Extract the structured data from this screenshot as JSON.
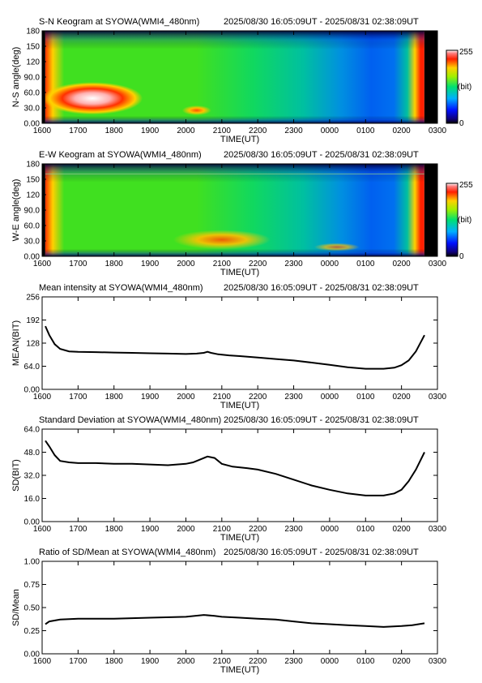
{
  "time_axis": {
    "xlabel": "TIME(UT)",
    "ticks": [
      "1600",
      "1700",
      "1800",
      "1900",
      "2000",
      "2100",
      "2200",
      "2300",
      "0000",
      "0100",
      "0200",
      "0300"
    ],
    "range_hours": [
      16,
      27
    ]
  },
  "colorbar": {
    "max_label": "255",
    "unit_label": "(bit)",
    "min_label": "0"
  },
  "chart_data": [
    {
      "type": "heatmap",
      "title": "S-N Keogram at SYOWA(WMI4_480nm)",
      "time_range": "2025/08/30 16:05:09UT - 2025/08/31 02:38:09UT",
      "xlabel": "TIME(UT)",
      "ylabel": "N-S angle(deg)",
      "ylim": [
        0,
        180
      ],
      "ytick_labels": [
        "0.00",
        "30.0",
        "60.0",
        "90.0",
        "120",
        "150",
        "180"
      ],
      "colorbar": [
        0,
        255
      ],
      "data_start_hours": 16.086,
      "data_end_hours": 26.636
    },
    {
      "type": "heatmap",
      "title": "E-W Keogram at SYOWA(WMI4_480nm)",
      "time_range": "2025/08/30 16:05:09UT - 2025/08/31 02:38:09UT",
      "xlabel": "TIME(UT)",
      "ylabel": "W-E angle(deg)",
      "ylim": [
        0,
        180
      ],
      "ytick_labels": [
        "0.00",
        "30.0",
        "60.0",
        "90.0",
        "120",
        "150",
        "180"
      ],
      "colorbar": [
        0,
        255
      ],
      "data_start_hours": 16.086,
      "data_end_hours": 26.636
    },
    {
      "type": "line",
      "title": "Mean intensity at SYOWA(WMI4_480nm)",
      "time_range": "2025/08/30 16:05:09UT - 2025/08/31 02:38:09UT",
      "xlabel": "TIME(UT)",
      "ylabel": "MEAN(BIT)",
      "ylim": [
        0,
        256
      ],
      "ytick_labels": [
        "0.00",
        "64.0",
        "128",
        "192",
        "256"
      ],
      "series": [
        {
          "values": [
            [
              16.09,
              175
            ],
            [
              16.2,
              150
            ],
            [
              16.35,
              125
            ],
            [
              16.5,
              112
            ],
            [
              16.75,
              105
            ],
            [
              17.0,
              104
            ],
            [
              17.5,
              103
            ],
            [
              18.0,
              102
            ],
            [
              18.5,
              101
            ],
            [
              19.0,
              100
            ],
            [
              19.5,
              99
            ],
            [
              20.0,
              98
            ],
            [
              20.3,
              99
            ],
            [
              20.5,
              101
            ],
            [
              20.6,
              104
            ],
            [
              20.7,
              101
            ],
            [
              20.9,
              97
            ],
            [
              21.2,
              94
            ],
            [
              21.5,
              92
            ],
            [
              22.0,
              88
            ],
            [
              22.5,
              84
            ],
            [
              23.0,
              80
            ],
            [
              23.5,
              74
            ],
            [
              24.0,
              68
            ],
            [
              24.5,
              61
            ],
            [
              25.0,
              57
            ],
            [
              25.5,
              57
            ],
            [
              25.8,
              60
            ],
            [
              26.0,
              67
            ],
            [
              26.2,
              80
            ],
            [
              26.4,
              105
            ],
            [
              26.64,
              150
            ]
          ]
        }
      ]
    },
    {
      "type": "line",
      "title": "Standard Deviation at SYOWA(WMI4_480nm)",
      "time_range": "2025/08/30 16:05:09UT - 2025/08/31 02:38:09UT",
      "xlabel": "TIME(UT)",
      "ylabel": "SD(BIT)",
      "ylim": [
        0,
        64
      ],
      "ytick_labels": [
        "0.00",
        "16.0",
        "32.0",
        "48.0",
        "64.0"
      ],
      "series": [
        {
          "values": [
            [
              16.09,
              56
            ],
            [
              16.2,
              52
            ],
            [
              16.35,
              46
            ],
            [
              16.5,
              42
            ],
            [
              16.75,
              41
            ],
            [
              17.0,
              40.5
            ],
            [
              17.5,
              40.5
            ],
            [
              18.0,
              40
            ],
            [
              18.5,
              40
            ],
            [
              19.0,
              39.5
            ],
            [
              19.5,
              39
            ],
            [
              20.0,
              40
            ],
            [
              20.2,
              41
            ],
            [
              20.4,
              43
            ],
            [
              20.6,
              45
            ],
            [
              20.8,
              44
            ],
            [
              21.0,
              40
            ],
            [
              21.3,
              38
            ],
            [
              21.7,
              37
            ],
            [
              22.0,
              36
            ],
            [
              22.5,
              33
            ],
            [
              23.0,
              29
            ],
            [
              23.5,
              25
            ],
            [
              24.0,
              22
            ],
            [
              24.5,
              19.5
            ],
            [
              25.0,
              18
            ],
            [
              25.5,
              18
            ],
            [
              25.8,
              19.5
            ],
            [
              26.0,
              22
            ],
            [
              26.2,
              28
            ],
            [
              26.4,
              36
            ],
            [
              26.64,
              48
            ]
          ]
        }
      ]
    },
    {
      "type": "line",
      "title": "Ratio of SD/Mean at SYOWA(WMI4_480nm)",
      "time_range": "2025/08/30 16:05:09UT - 2025/08/31 02:38:09UT",
      "xlabel": "TIME(UT)",
      "ylabel": "SD/Mean",
      "ylim": [
        0,
        1
      ],
      "ytick_labels": [
        "0.00",
        "0.25",
        "0.50",
        "0.75",
        "1.00"
      ],
      "series": [
        {
          "values": [
            [
              16.09,
              0.32
            ],
            [
              16.2,
              0.35
            ],
            [
              16.5,
              0.37
            ],
            [
              17.0,
              0.38
            ],
            [
              18.0,
              0.38
            ],
            [
              19.0,
              0.39
            ],
            [
              20.0,
              0.4
            ],
            [
              20.5,
              0.42
            ],
            [
              20.8,
              0.41
            ],
            [
              21.0,
              0.4
            ],
            [
              21.5,
              0.39
            ],
            [
              22.0,
              0.38
            ],
            [
              22.5,
              0.37
            ],
            [
              23.0,
              0.35
            ],
            [
              23.5,
              0.33
            ],
            [
              24.0,
              0.32
            ],
            [
              24.5,
              0.31
            ],
            [
              25.0,
              0.3
            ],
            [
              25.5,
              0.29
            ],
            [
              26.0,
              0.3
            ],
            [
              26.3,
              0.31
            ],
            [
              26.64,
              0.33
            ]
          ]
        }
      ]
    }
  ]
}
